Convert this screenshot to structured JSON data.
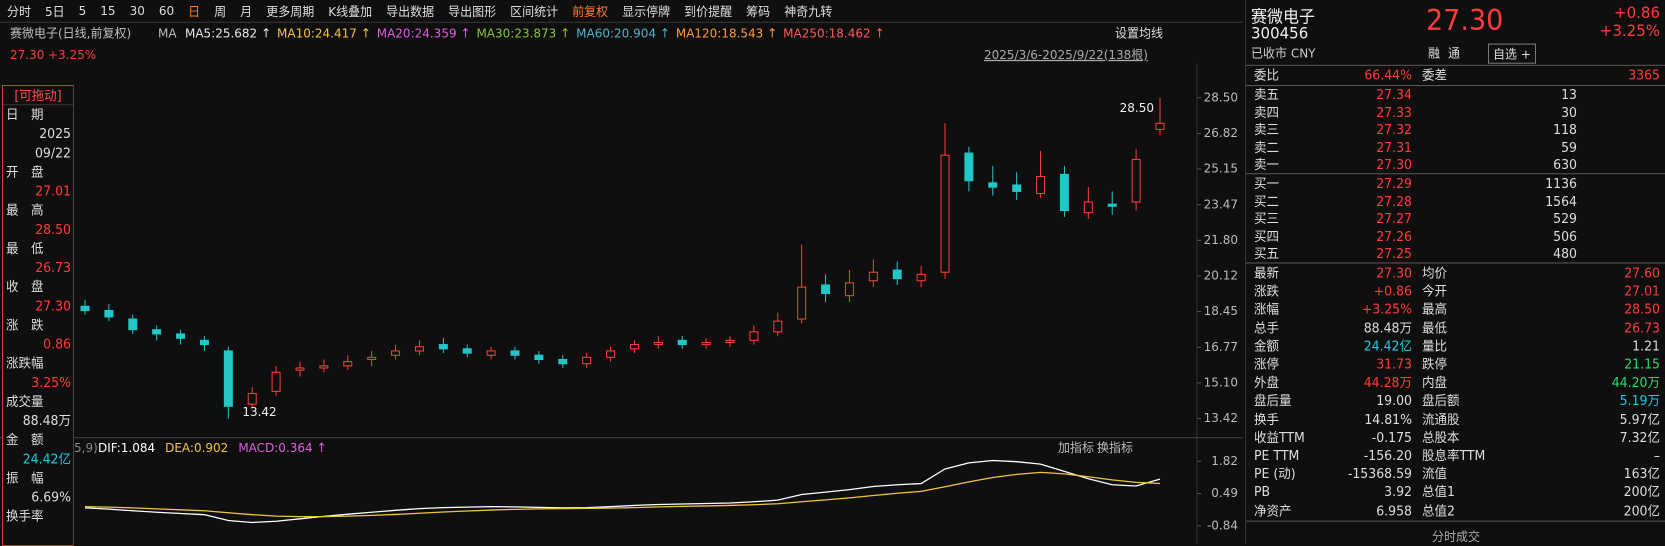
{
  "toolbar": {
    "items": [
      "分时",
      "5日",
      "5",
      "15",
      "30",
      "60",
      "日",
      "周",
      "月",
      "更多周期",
      "K线叠加",
      "导出数据",
      "导出图形",
      "区间统计",
      "前复权",
      "显示停牌",
      "到价提醒",
      "筹码",
      "神奇九转"
    ],
    "active": [
      6,
      14
    ]
  },
  "ma_header": {
    "title": "赛微电子(日线,前复权)",
    "label": "MA",
    "items": [
      {
        "text": "MA5:25.682 ↑",
        "color": "#e8e8e8"
      },
      {
        "text": "MA10:24.417 ↑",
        "color": "#f2c53d"
      },
      {
        "text": "MA20:24.359 ↑",
        "color": "#e05ee0"
      },
      {
        "text": "MA30:23.873 ↑",
        "color": "#86c440"
      },
      {
        "text": "MA60:20.904 ↑",
        "color": "#4fb3c9"
      },
      {
        "text": "MA120:18.543 ↑",
        "color": "#ff9a3c"
      },
      {
        "text": "MA250:18.462 ↑",
        "color": "#ff5a5a"
      }
    ]
  },
  "last_price": "27.30",
  "last_pct": "+3.25%",
  "set_ma": "设置均线",
  "range": "2025/3/6-2025/9/22(138根)",
  "kline": {
    "ylim": [
      13.42,
      28.5
    ],
    "yticks": [
      {
        "value": 28.5,
        "label": "28.50"
      },
      {
        "value": 26.82,
        "label": "26.82"
      },
      {
        "value": 25.15,
        "label": "25.15"
      },
      {
        "value": 23.47,
        "label": "23.47"
      },
      {
        "value": 21.8,
        "label": "21.80"
      },
      {
        "value": 20.12,
        "label": "20.12"
      },
      {
        "value": 18.45,
        "label": "18.45"
      },
      {
        "value": 16.77,
        "label": "16.77"
      },
      {
        "value": 15.1,
        "label": "15.10"
      },
      13.42
    ],
    "up_color": "#ff3b3b",
    "down_color": "#22c7c7",
    "open": [
      18.7,
      18.5,
      18.1,
      17.6,
      17.4,
      17.1,
      16.6,
      14.1,
      14.7,
      15.7,
      15.8,
      15.9,
      16.2,
      16.4,
      16.6,
      16.9,
      16.7,
      16.4,
      16.6,
      16.4,
      16.2,
      16.0,
      16.3,
      16.7,
      16.9,
      17.1,
      16.9,
      17.0,
      17.1,
      17.5,
      18.1,
      19.7,
      19.2,
      19.9,
      20.4,
      19.9,
      20.3,
      25.9,
      24.5,
      24.4,
      24.0,
      24.9,
      23.1,
      23.5,
      23.6,
      27.01
    ],
    "high": [
      19.0,
      18.8,
      18.3,
      17.8,
      17.6,
      17.3,
      16.8,
      14.9,
      15.9,
      16.1,
      16.2,
      16.4,
      16.6,
      16.9,
      17.1,
      17.2,
      16.9,
      16.8,
      16.8,
      16.6,
      16.4,
      16.5,
      16.8,
      17.1,
      17.3,
      17.3,
      17.2,
      17.3,
      17.8,
      18.4,
      21.6,
      20.2,
      20.4,
      20.9,
      20.8,
      20.6,
      27.3,
      26.2,
      25.3,
      25.0,
      26.0,
      25.3,
      24.3,
      24.1,
      26.1,
      28.5
    ],
    "low": [
      18.3,
      18.0,
      17.4,
      17.1,
      16.9,
      16.6,
      13.42,
      13.9,
      14.5,
      15.4,
      15.6,
      15.7,
      15.9,
      16.2,
      16.4,
      16.5,
      16.3,
      16.2,
      16.2,
      16.0,
      15.8,
      15.8,
      16.1,
      16.5,
      16.7,
      16.7,
      16.7,
      16.8,
      16.9,
      17.3,
      17.9,
      18.9,
      18.9,
      19.6,
      19.7,
      19.6,
      20.0,
      24.1,
      23.9,
      23.7,
      23.8,
      22.9,
      22.8,
      23.0,
      23.2,
      26.73
    ],
    "close": [
      18.5,
      18.2,
      17.6,
      17.4,
      17.2,
      16.9,
      14.0,
      14.6,
      15.6,
      15.8,
      15.9,
      16.1,
      16.3,
      16.6,
      16.8,
      16.7,
      16.5,
      16.6,
      16.4,
      16.2,
      16.0,
      16.3,
      16.6,
      16.9,
      17.0,
      16.9,
      17.0,
      17.1,
      17.5,
      18.0,
      19.6,
      19.3,
      19.8,
      20.3,
      20.0,
      20.2,
      25.8,
      24.6,
      24.3,
      24.1,
      24.8,
      23.2,
      23.6,
      23.4,
      25.6,
      27.3
    ],
    "max_label": "28.50",
    "min_label": "13.42"
  },
  "macd": {
    "params": "5,9)",
    "dif_label": "DIF:1.084",
    "dea_label": "DEA:0.902",
    "macd_label": "MACD:0.364 ↑",
    "add": "加指标",
    "switch": "换指标",
    "ylim": [
      -1.28,
      2.26
    ],
    "yticks": [
      1.82,
      0.49,
      -0.84
    ],
    "dif": [
      -0.1,
      -0.15,
      -0.22,
      -0.28,
      -0.33,
      -0.38,
      -0.62,
      -0.7,
      -0.65,
      -0.55,
      -0.45,
      -0.36,
      -0.28,
      -0.2,
      -0.13,
      -0.09,
      -0.07,
      -0.05,
      -0.06,
      -0.08,
      -0.1,
      -0.09,
      -0.05,
      0.0,
      0.04,
      0.06,
      0.08,
      0.1,
      0.15,
      0.22,
      0.45,
      0.55,
      0.65,
      0.78,
      0.85,
      0.9,
      1.5,
      1.75,
      1.85,
      1.8,
      1.7,
      1.4,
      1.1,
      0.85,
      0.8,
      1.084
    ],
    "dea": [
      -0.05,
      -0.07,
      -0.1,
      -0.14,
      -0.18,
      -0.22,
      -0.3,
      -0.38,
      -0.44,
      -0.46,
      -0.46,
      -0.44,
      -0.41,
      -0.37,
      -0.32,
      -0.27,
      -0.23,
      -0.19,
      -0.16,
      -0.14,
      -0.13,
      -0.12,
      -0.11,
      -0.09,
      -0.06,
      -0.04,
      -0.02,
      0.0,
      0.03,
      0.07,
      0.15,
      0.23,
      0.31,
      0.41,
      0.5,
      0.58,
      0.77,
      0.97,
      1.15,
      1.28,
      1.36,
      1.3,
      1.18,
      1.05,
      0.95,
      0.902
    ],
    "dif_color": "#ffffff",
    "dea_color": "#f2c53d"
  },
  "left_panel": {
    "tag": "[可拖动]",
    "date": {
      "label": "日　期",
      "year": "2025",
      "day": "09/22"
    },
    "rows": [
      {
        "label": "开　盘",
        "value": "27.01",
        "color": "#ff3b3b"
      },
      {
        "label": "最　高",
        "value": "28.50",
        "color": "#ff3b3b"
      },
      {
        "label": "最　低",
        "value": "26.73",
        "color": "#ff3b3b"
      },
      {
        "label": "收　盘",
        "value": "27.30",
        "color": "#ff3b3b"
      },
      {
        "label": "涨　跌",
        "value": "0.86",
        "color": "#ff3b3b"
      },
      {
        "label": "涨跌幅",
        "value": "3.25%",
        "color": "#ff3b3b"
      },
      {
        "label": "成交量",
        "value": "88.48万",
        "color": "#dddddd"
      },
      {
        "label": "金　额",
        "value": "24.42亿",
        "color": "#22c7e0"
      },
      {
        "label": "振　幅",
        "value": "6.69%",
        "color": "#dddddd"
      }
    ],
    "last": "换手率"
  },
  "quote": {
    "name": "赛微电子",
    "code": "300456",
    "status": "已收市 CNY",
    "price": "27.30",
    "change": "+0.86",
    "pct": "+3.25%",
    "buttons": [
      "融",
      "通",
      "自选 +"
    ]
  },
  "order_book": {
    "ratio": {
      "label": "委比",
      "value": "66.44%",
      "label2": "委差",
      "value2": "3365"
    },
    "asks": [
      {
        "label": "卖五",
        "price": "27.34",
        "vol": "13"
      },
      {
        "label": "卖四",
        "price": "27.33",
        "vol": "30"
      },
      {
        "label": "卖三",
        "price": "27.32",
        "vol": "118"
      },
      {
        "label": "卖二",
        "price": "27.31",
        "vol": "59"
      },
      {
        "label": "卖一",
        "price": "27.30",
        "vol": "630"
      }
    ],
    "bids": [
      {
        "label": "买一",
        "price": "27.29",
        "vol": "1136"
      },
      {
        "label": "买二",
        "price": "27.28",
        "vol": "1564"
      },
      {
        "label": "买三",
        "price": "27.27",
        "vol": "529"
      },
      {
        "label": "买四",
        "price": "27.26",
        "vol": "506"
      },
      {
        "label": "买五",
        "price": "27.25",
        "vol": "480"
      }
    ]
  },
  "stats": [
    [
      {
        "label": "最新",
        "value": "27.30",
        "color": "#ff3b3b"
      },
      {
        "label": "均价",
        "value": "27.60",
        "color": "#ff3b3b"
      }
    ],
    [
      {
        "label": "涨跌",
        "value": "+0.86",
        "color": "#ff3b3b"
      },
      {
        "label": "今开",
        "value": "27.01",
        "color": "#ff3b3b"
      }
    ],
    [
      {
        "label": "涨幅",
        "value": "+3.25%",
        "color": "#ff3b3b"
      },
      {
        "label": "最高",
        "value": "28.50",
        "color": "#ff3b3b"
      }
    ],
    [
      {
        "label": "总手",
        "value": "88.48万",
        "color": "#dddddd"
      },
      {
        "label": "最低",
        "value": "26.73",
        "color": "#ff3b3b"
      }
    ],
    [
      {
        "label": "金额",
        "value": "24.42亿",
        "color": "#22c7e0"
      },
      {
        "label": "量比",
        "value": "1.21",
        "color": "#dddddd"
      }
    ],
    [
      {
        "label": "涨停",
        "value": "31.73",
        "color": "#ff3b3b"
      },
      {
        "label": "跌停",
        "value": "21.15",
        "color": "#2bd96b"
      }
    ],
    [
      {
        "label": "外盘",
        "value": "44.28万",
        "color": "#ff3b3b"
      },
      {
        "label": "内盘",
        "value": "44.20万",
        "color": "#2bd96b"
      }
    ],
    [
      {
        "label": "盘后量",
        "value": "19.00",
        "color": "#dddddd"
      },
      {
        "label": "盘后额",
        "value": "5.19万",
        "color": "#22c7e0"
      }
    ],
    [
      {
        "label": "换手",
        "value": "14.81%",
        "color": "#dddddd"
      },
      {
        "label": "流通股",
        "value": "5.97亿",
        "color": "#dddddd"
      }
    ],
    [
      {
        "label": "收益TTM",
        "value": "-0.175",
        "color": "#dddddd"
      },
      {
        "label": "总股本",
        "value": "7.32亿",
        "color": "#dddddd"
      }
    ],
    [
      {
        "label": "PE TTM",
        "value": "-156.20",
        "color": "#dddddd"
      },
      {
        "label": "股息率TTM",
        "value": "–",
        "color": "#dddddd"
      }
    ],
    [
      {
        "label": "PE (动)",
        "value": "-15368.59",
        "color": "#dddddd"
      },
      {
        "label": "流值",
        "value": "163亿",
        "color": "#dddddd"
      }
    ],
    [
      {
        "label": "PB",
        "value": "3.92",
        "color": "#dddddd"
      },
      {
        "label": "总值1",
        "value": "200亿",
        "color": "#dddddd"
      }
    ],
    [
      {
        "label": "净资产",
        "value": "6.958",
        "color": "#dddddd"
      },
      {
        "label": "总值2",
        "value": "200亿",
        "color": "#dddddd"
      }
    ]
  ],
  "footer": "分时成交"
}
